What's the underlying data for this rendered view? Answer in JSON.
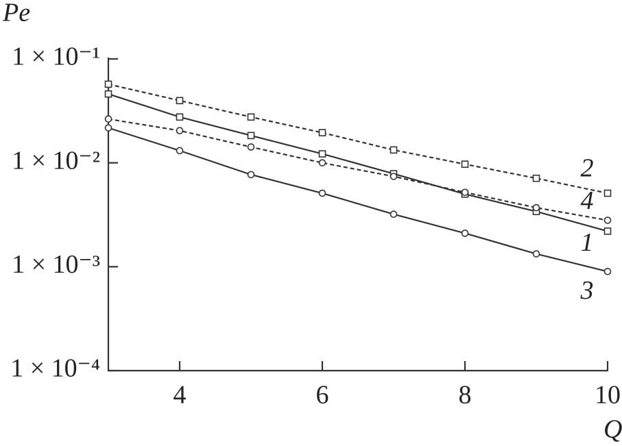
{
  "chart_data": {
    "type": "line",
    "ylabel": "Pe",
    "xlabel": "Q",
    "log_y": true,
    "xlim": [
      3,
      10
    ],
    "xticks": [
      4,
      6,
      8,
      10
    ],
    "ylim": [
      0.0001,
      0.1
    ],
    "yticks": [
      {
        "value": 0.1,
        "label": "1 × 10⁻¹"
      },
      {
        "value": 0.01,
        "label": "1 × 10⁻²"
      },
      {
        "value": 0.001,
        "label": "1 × 10⁻³"
      },
      {
        "value": 0.0001,
        "label": "1 × 10⁻⁴"
      }
    ],
    "x": [
      3,
      4,
      5,
      6,
      7,
      8,
      9,
      10
    ],
    "series": [
      {
        "name": "1",
        "color": "#333333",
        "linestyle": "solid",
        "marker": "square",
        "values": [
          0.046,
          0.0276,
          0.0183,
          0.0122,
          0.00785,
          0.005,
          0.0034,
          0.0022
        ]
      },
      {
        "name": "2",
        "color": "#333333",
        "linestyle": "dashed",
        "marker": "square",
        "values": [
          0.0571,
          0.0397,
          0.0276,
          0.0195,
          0.0133,
          0.0097,
          0.0071,
          0.0051
        ]
      },
      {
        "name": "3",
        "color": "#333333",
        "linestyle": "solid",
        "marker": "circle",
        "values": [
          0.0217,
          0.0131,
          0.0077,
          0.0051,
          0.0032,
          0.0021,
          0.00133,
          0.0009
        ]
      },
      {
        "name": "4",
        "color": "#333333",
        "linestyle": "dashed",
        "marker": "circle",
        "values": [
          0.0264,
          0.0204,
          0.0142,
          0.01,
          0.0074,
          0.0052,
          0.0037,
          0.0028
        ]
      }
    ]
  }
}
